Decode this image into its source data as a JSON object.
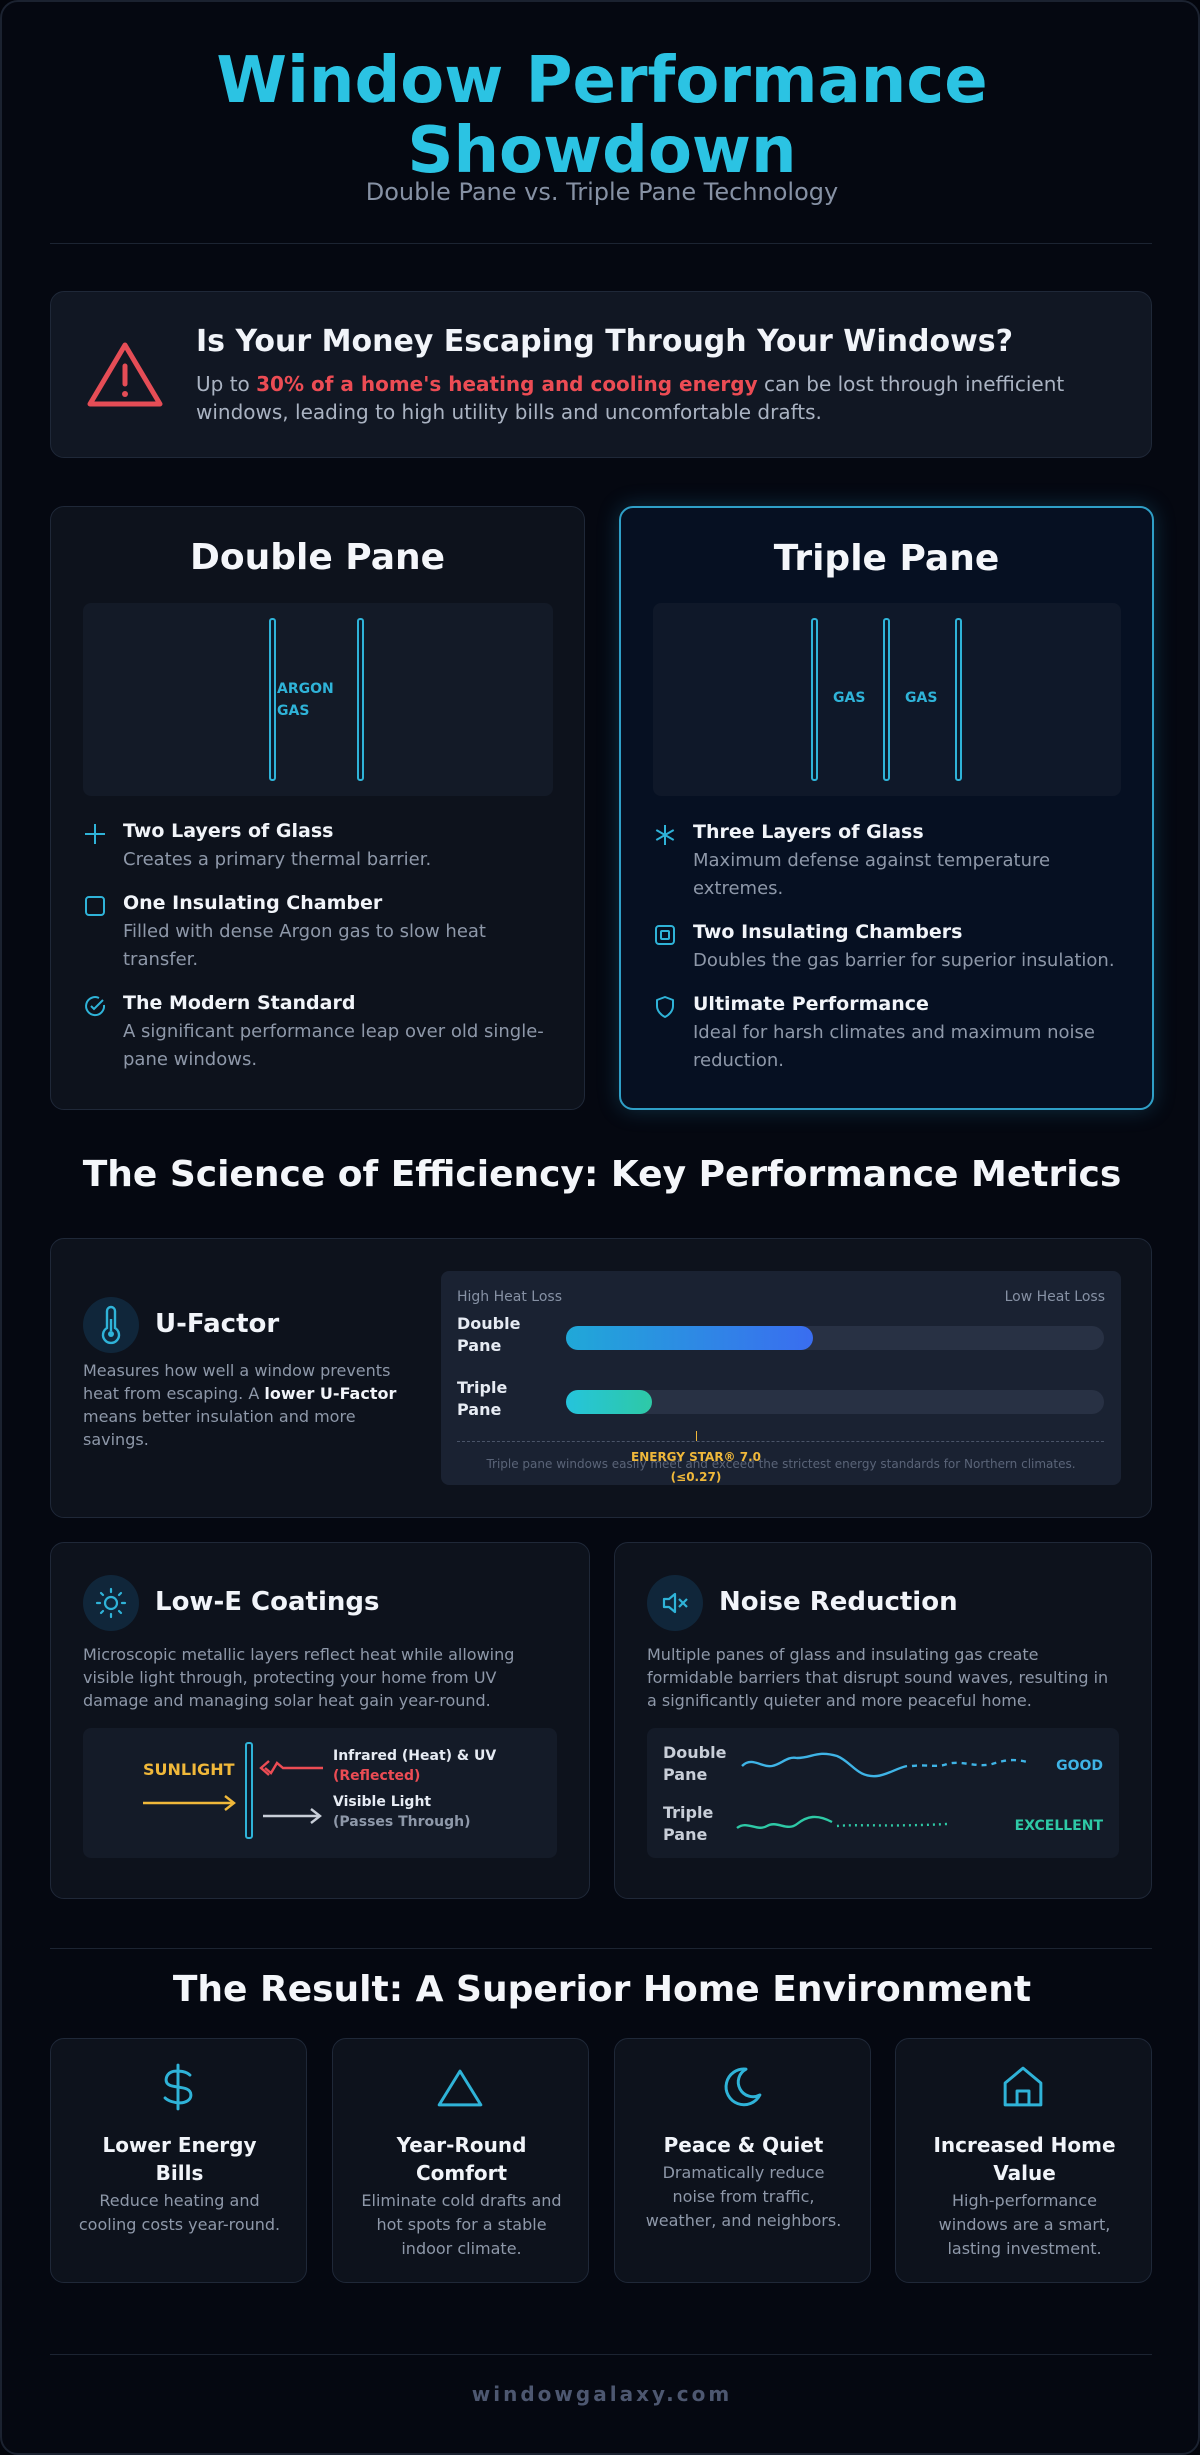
{
  "header": {
    "title_line1": "Window Performance",
    "title_line2": "Showdown",
    "subtitle": "Double Pane vs. Triple Pane Technology"
  },
  "alert": {
    "icon": "warning-triangle-icon",
    "title": "Is Your Money Escaping Through Your Windows?",
    "text_prefix": "Up to ",
    "text_highlight": "30% of a home's heating and cooling energy",
    "text_suffix": " can be lost through inefficient windows, leading to high utility bills and uncomfortable drafts."
  },
  "comparison": {
    "double": {
      "title": "Double Pane",
      "gas_label_1": "ARGON",
      "gas_label_2": "GAS",
      "features": [
        {
          "icon": "plus-icon",
          "title": "Two Layers of Glass",
          "desc": "Creates a primary thermal barrier."
        },
        {
          "icon": "square-icon",
          "title": "One Insulating Chamber",
          "desc": "Filled with dense Argon gas to slow heat transfer."
        },
        {
          "icon": "check-circle-icon",
          "title": "The Modern Standard",
          "desc": "A significant performance leap over old single-pane windows."
        }
      ]
    },
    "triple": {
      "title": "Triple Pane",
      "gas_label_a": "GAS",
      "gas_label_b": "GAS",
      "features": [
        {
          "icon": "snowflake-icon",
          "title": "Three Layers of Glass",
          "desc": "Maximum defense against temperature extremes."
        },
        {
          "icon": "nested-square-icon",
          "title": "Two Insulating Chambers",
          "desc": "Doubles the gas barrier for superior insulation."
        },
        {
          "icon": "shield-icon",
          "title": "Ultimate Performance",
          "desc": "Ideal for harsh climates and maximum noise reduction."
        }
      ]
    }
  },
  "metrics": {
    "title": "The Science of Efficiency: Key Performance Metrics",
    "ufactor": {
      "icon": "thermometer-icon",
      "title": "U-Factor",
      "desc_prefix": "Measures how well a window prevents heat from escaping. A ",
      "desc_bold": "lower U-Factor",
      "desc_suffix": " means better insulation and more savings.",
      "scale_left": "High Heat Loss",
      "scale_right": "Low Heat Loss",
      "bars": [
        {
          "label_1": "Double",
          "label_2": "Pane",
          "fraction": 0.46,
          "color_from": "#20a8d8",
          "color_to": "#3a6df0"
        },
        {
          "label_1": "Triple",
          "label_2": "Pane",
          "fraction": 0.16,
          "color_from": "#25c4dc",
          "color_to": "#2ec9a6"
        }
      ],
      "energy_star_1": "ENERGY STAR® 7.0",
      "energy_star_2": "(≤0.27)",
      "footnote": "Triple pane windows easily meet and exceed the strictest energy standards for Northern climates."
    },
    "lowe": {
      "icon": "sun-icon",
      "title": "Low-E Coatings",
      "desc": "Microscopic metallic layers reflect heat while allowing visible light through, protecting your home from UV damage and managing solar heat gain year-round.",
      "sunlight": "SUNLIGHT",
      "infrared": "Infrared (Heat) & UV",
      "reflected": "(Reflected)",
      "visible": "Visible Light",
      "passes": "(Passes Through)"
    },
    "noise": {
      "icon": "speaker-muted-icon",
      "title": "Noise Reduction",
      "desc": "Multiple panes of glass and insulating gas create formidable barriers that disrupt sound waves, resulting in a significantly quieter and more peaceful home.",
      "rows": [
        {
          "label_1": "Double",
          "label_2": "Pane",
          "rating": "GOOD",
          "color": "#3fb4e6"
        },
        {
          "label_1": "Triple",
          "label_2": "Pane",
          "rating": "EXCELLENT",
          "color": "#2ec9a6"
        }
      ]
    }
  },
  "results": {
    "title": "The Result: A Superior Home Environment",
    "cards": [
      {
        "icon": "dollar-icon",
        "title_1": "Lower Energy",
        "title_2": "Bills",
        "desc_1": "Reduce heating and",
        "desc_2": "cooling costs year-round.",
        "desc_3": ""
      },
      {
        "icon": "triangle-icon",
        "title_1": "Year-Round",
        "title_2": "Comfort",
        "desc_1": "Eliminate cold drafts and",
        "desc_2": "hot spots for a stable",
        "desc_3": "indoor climate."
      },
      {
        "icon": "moon-icon",
        "title_1": "Peace & Quiet",
        "title_2": "",
        "desc_1": "Dramatically reduce",
        "desc_2": "noise from traffic,",
        "desc_3": "weather, and neighbors."
      },
      {
        "icon": "home-icon",
        "title_1": "Increased Home",
        "title_2": "Value",
        "desc_1": "High-performance",
        "desc_2": "windows are a smart,",
        "desc_3": "lasting investment."
      }
    ]
  },
  "footer": {
    "brand": "windowgalaxy.com"
  },
  "colors": {
    "accent": "#2bc3e3",
    "alert": "#ec4c54",
    "energy_star": "#f0b83a",
    "excellent": "#2ec9a6"
  }
}
